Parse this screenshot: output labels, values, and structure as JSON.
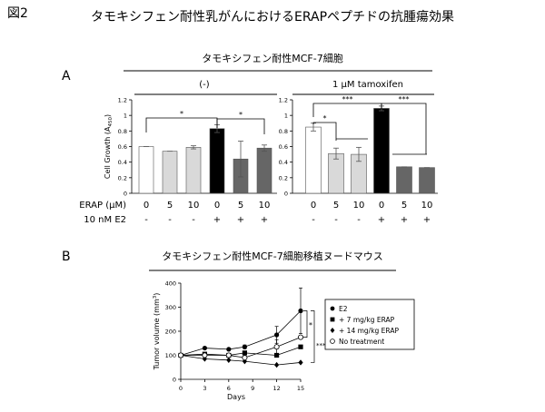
{
  "figure_label": "図2",
  "main_title": "タモキシフェン耐性乳がんにおけるERAPペプチドの抗腫瘍効果",
  "panel_a": {
    "label": "A",
    "header": "タモキシフェン耐性MCF-7細胞",
    "group_left": "(-)",
    "group_right": "1 μM tamoxifen",
    "erap_row_label": "ERAP (μM)",
    "e2_row_label": "10 nM E2"
  },
  "panel_b": {
    "label": "B",
    "header": "タモキシフェン耐性MCF-7細胞移植ヌードマウス"
  },
  "colors": {
    "white_bar": "#ffffff",
    "light_gray_bar": "#d9d9d9",
    "black_bar": "#000000",
    "dark_gray_bar": "#666666"
  },
  "chart_data": [
    {
      "type": "bar",
      "panel": "A (-)",
      "categories": [
        "0",
        "5",
        "10",
        "0",
        "5",
        "10"
      ],
      "erap_uM": [
        "0",
        "5",
        "10",
        "0",
        "5",
        "10"
      ],
      "e2": [
        "-",
        "-",
        "-",
        "+",
        "+",
        "+"
      ],
      "values": [
        0.6,
        0.54,
        0.59,
        0.83,
        0.44,
        0.58
      ],
      "errors": [
        0,
        0,
        0.02,
        0.05,
        0.23,
        0.04
      ],
      "fills": [
        "white",
        "light_gray",
        "light_gray",
        "black",
        "dark_gray",
        "dark_gray"
      ],
      "ylabel": "Cell Growth (A450)",
      "ylim": [
        0,
        1.2
      ],
      "yticks": [
        "0",
        "0.2",
        "0.4",
        "0.6",
        "0.8",
        "1",
        "1.2"
      ],
      "significance": [
        {
          "from": 0,
          "to": 3,
          "label": "*"
        },
        {
          "from": 3,
          "to": 5,
          "label": "*"
        }
      ]
    },
    {
      "type": "bar",
      "panel": "A 1 μM tamoxifen",
      "categories": [
        "0",
        "5",
        "10",
        "0",
        "5",
        "10"
      ],
      "erap_uM": [
        "0",
        "5",
        "10",
        "0",
        "5",
        "10"
      ],
      "e2": [
        "-",
        "-",
        "-",
        "+",
        "+",
        "+"
      ],
      "values": [
        0.85,
        0.51,
        0.5,
        1.09,
        0.34,
        0.33
      ],
      "errors": [
        0.05,
        0.07,
        0.09,
        0.03,
        0,
        0
      ],
      "fills": [
        "white",
        "light_gray",
        "light_gray",
        "black",
        "dark_gray",
        "dark_gray"
      ],
      "ylim": [
        0,
        1.2
      ],
      "yticks": [
        "0",
        "0.2",
        "0.4",
        "0.6",
        "0.8",
        "1",
        "1.2"
      ],
      "significance": [
        {
          "from": 0,
          "to": 3,
          "label": "***"
        },
        {
          "from": 0,
          "to": 1,
          "label": "*"
        },
        {
          "from": 3,
          "to": 4,
          "label": "***"
        }
      ]
    },
    {
      "type": "line",
      "panel": "B",
      "x": [
        0,
        3,
        6,
        8,
        12,
        15
      ],
      "xticks": [
        "0",
        "3",
        "6",
        "9",
        "12",
        "15"
      ],
      "xlabel": "Days",
      "ylabel": "Tumor volume (mm3)",
      "xlim": [
        0,
        15
      ],
      "ylim": [
        0,
        400
      ],
      "yticks": [
        "0",
        "100",
        "200",
        "300",
        "400"
      ],
      "series": [
        {
          "name": "E2",
          "marker": "circle-filled",
          "values": [
            100,
            130,
            125,
            135,
            185,
            285
          ],
          "errors": [
            0,
            0,
            0,
            8,
            35,
            95
          ]
        },
        {
          "name": "+ 7 mg/kg ERAP",
          "marker": "square",
          "values": [
            100,
            105,
            100,
            110,
            100,
            135
          ],
          "errors": [
            0,
            0,
            0,
            0,
            0,
            0
          ]
        },
        {
          "name": "+ 14 mg/kg ERAP",
          "marker": "diamond",
          "values": [
            100,
            85,
            80,
            75,
            60,
            70
          ],
          "errors": [
            0,
            0,
            0,
            0,
            0,
            0
          ]
        },
        {
          "name": "No treatment",
          "marker": "circle-open",
          "values": [
            100,
            100,
            100,
            90,
            135,
            175
          ],
          "errors": [
            0,
            0,
            0,
            0,
            30,
            0
          ]
        }
      ],
      "significance": [
        {
          "label": "*"
        },
        {
          "label": "***"
        }
      ]
    }
  ]
}
